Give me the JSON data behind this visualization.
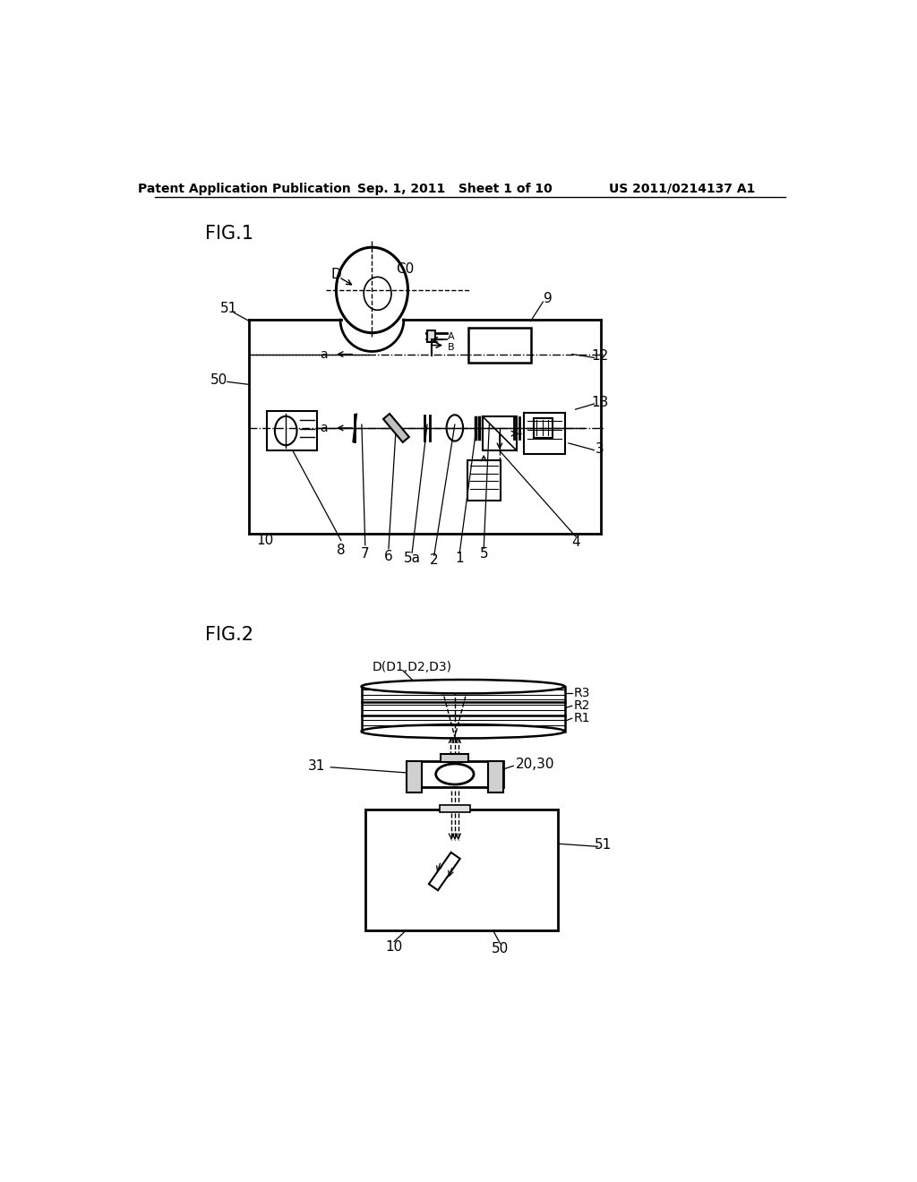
{
  "bg_color": "#ffffff",
  "line_color": "#000000",
  "header_left": "Patent Application Publication",
  "header_mid": "Sep. 1, 2011   Sheet 1 of 10",
  "header_right": "US 2011/0214137 A1"
}
